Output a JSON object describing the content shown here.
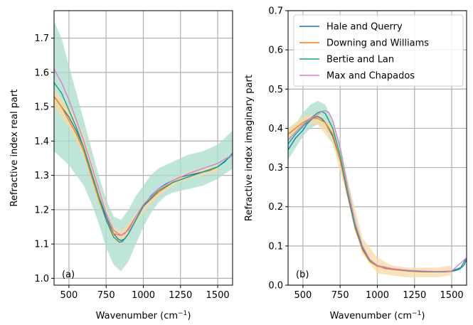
{
  "chart_data": [
    {
      "type": "line",
      "panel_label": "(a)",
      "xlabel": "Wavenumber (cm",
      "xlabel_sup": "−1",
      "xlabel_close": ")",
      "ylabel": "Refractive index real part",
      "xlim": [
        400,
        1600
      ],
      "ylim": [
        0.98,
        1.78
      ],
      "xticks": [
        500,
        750,
        1000,
        1250,
        1500
      ],
      "yticks": [
        1.0,
        1.1,
        1.2,
        1.3,
        1.4,
        1.5,
        1.6,
        1.7
      ],
      "ytick_labels": [
        "1.0",
        "1.1",
        "1.2",
        "1.3",
        "1.4",
        "1.5",
        "1.6",
        "1.7"
      ],
      "grid": true,
      "bands": [
        {
          "color": "#a9dccc",
          "x": [
            400,
            450,
            500,
            550,
            600,
            650,
            700,
            750,
            800,
            850,
            900,
            950,
            1000,
            1050,
            1100,
            1150,
            1200,
            1300,
            1400,
            1500,
            1600
          ],
          "upper": [
            1.75,
            1.7,
            1.62,
            1.54,
            1.46,
            1.38,
            1.3,
            1.23,
            1.18,
            1.17,
            1.2,
            1.24,
            1.27,
            1.3,
            1.32,
            1.33,
            1.34,
            1.36,
            1.37,
            1.39,
            1.43
          ],
          "lower": [
            1.37,
            1.35,
            1.33,
            1.3,
            1.27,
            1.22,
            1.16,
            1.09,
            1.04,
            1.02,
            1.05,
            1.1,
            1.15,
            1.19,
            1.22,
            1.24,
            1.25,
            1.26,
            1.27,
            1.29,
            1.32
          ]
        },
        {
          "color": "#f6d9a6",
          "x": [
            400,
            500,
            600,
            700,
            800,
            850,
            900,
            1000,
            1100,
            1200,
            1300,
            1400,
            1500
          ],
          "upper": [
            1.55,
            1.5,
            1.42,
            1.27,
            1.15,
            1.14,
            1.16,
            1.22,
            1.26,
            1.29,
            1.31,
            1.32,
            1.33
          ],
          "lower": [
            1.5,
            1.44,
            1.36,
            1.22,
            1.11,
            1.1,
            1.13,
            1.19,
            1.24,
            1.27,
            1.29,
            1.3,
            1.31
          ]
        }
      ],
      "series": [
        {
          "name": "Hale and Querry",
          "color": "#1f77b4",
          "x": [
            400,
            450,
            500,
            550,
            600,
            650,
            700,
            750,
            800,
            830,
            850,
            875,
            900,
            950,
            1000,
            1050,
            1100,
            1150,
            1200,
            1250,
            1300,
            1350,
            1400,
            1450,
            1500,
            1550,
            1600
          ],
          "y": [
            1.53,
            1.5,
            1.47,
            1.43,
            1.38,
            1.31,
            1.24,
            1.18,
            1.13,
            1.115,
            1.11,
            1.115,
            1.13,
            1.17,
            1.21,
            1.24,
            1.26,
            1.275,
            1.285,
            1.295,
            1.3,
            1.305,
            1.31,
            1.315,
            1.325,
            1.34,
            1.365
          ]
        },
        {
          "name": "Downing and Williams",
          "color": "#ff7f0e",
          "x": [
            400,
            450,
            500,
            550,
            600,
            650,
            700,
            750,
            800,
            850,
            875,
            900,
            950,
            1000,
            1100,
            1200,
            1300,
            1400,
            1480
          ],
          "y": [
            1.53,
            1.5,
            1.46,
            1.42,
            1.37,
            1.3,
            1.23,
            1.17,
            1.13,
            1.125,
            1.13,
            1.145,
            1.18,
            1.21,
            1.25,
            1.28,
            1.295,
            1.31,
            1.32
          ]
        },
        {
          "name": "Bertie and Lan",
          "color": "#17a085",
          "x": [
            400,
            450,
            500,
            550,
            600,
            650,
            700,
            750,
            800,
            840,
            860,
            900,
            950,
            1000,
            1100,
            1200,
            1300,
            1400,
            1500,
            1600
          ],
          "y": [
            1.57,
            1.54,
            1.49,
            1.44,
            1.38,
            1.31,
            1.24,
            1.17,
            1.12,
            1.105,
            1.107,
            1.13,
            1.17,
            1.21,
            1.255,
            1.28,
            1.295,
            1.31,
            1.325,
            1.36
          ]
        },
        {
          "name": "Max and Chapados",
          "color": "#d77fcf",
          "x": [
            400,
            450,
            500,
            550,
            600,
            650,
            700,
            750,
            800,
            850,
            900,
            950,
            1000,
            1100,
            1200,
            1300,
            1400,
            1500,
            1600
          ],
          "y": [
            1.61,
            1.57,
            1.52,
            1.46,
            1.4,
            1.33,
            1.26,
            1.19,
            1.14,
            1.125,
            1.14,
            1.18,
            1.215,
            1.26,
            1.285,
            1.305,
            1.32,
            1.335,
            1.36
          ]
        }
      ]
    },
    {
      "type": "line",
      "panel_label": "(b)",
      "xlabel": "Wavenumber (cm",
      "xlabel_sup": "−1",
      "xlabel_close": ")",
      "ylabel": "Refractive index imaginary part",
      "xlim": [
        400,
        1600
      ],
      "ylim": [
        0.0,
        0.7
      ],
      "xticks": [
        500,
        750,
        1000,
        1250,
        1500
      ],
      "yticks": [
        0.0,
        0.1,
        0.2,
        0.3,
        0.4,
        0.5,
        0.6,
        0.7
      ],
      "ytick_labels": [
        "0.0",
        "0.1",
        "0.2",
        "0.3",
        "0.4",
        "0.5",
        "0.6",
        "0.7"
      ],
      "grid": true,
      "legend_loc": "top-right",
      "bands": [
        {
          "color": "#a9dccc",
          "x": [
            400,
            450,
            500,
            550,
            600,
            650,
            700,
            750,
            800,
            850,
            900
          ],
          "upper": [
            0.4,
            0.41,
            0.44,
            0.46,
            0.47,
            0.46,
            0.42,
            0.36,
            0.27,
            0.18,
            0.11
          ],
          "lower": [
            0.32,
            0.35,
            0.38,
            0.4,
            0.41,
            0.4,
            0.36,
            0.31,
            0.23,
            0.15,
            0.09
          ]
        },
        {
          "color": "#f6d9a6",
          "x": [
            400,
            500,
            600,
            700,
            800,
            900,
            1000,
            1100,
            1200,
            1300,
            1400,
            1500
          ],
          "upper": [
            0.4,
            0.43,
            0.44,
            0.4,
            0.27,
            0.12,
            0.07,
            0.05,
            0.045,
            0.045,
            0.045,
            0.05
          ],
          "lower": [
            0.37,
            0.41,
            0.41,
            0.36,
            0.22,
            0.08,
            0.03,
            0.025,
            0.02,
            0.02,
            0.02,
            0.025
          ]
        }
      ],
      "series": [
        {
          "name": "Hale and Querry",
          "color": "#1f77b4",
          "x": [
            400,
            425,
            450,
            475,
            500,
            525,
            550,
            575,
            600,
            625,
            650,
            700,
            750,
            800,
            850,
            900,
            950,
            1000,
            1050,
            1100,
            1200,
            1300,
            1400,
            1450,
            1500,
            1550,
            1580,
            1600
          ],
          "y": [
            0.345,
            0.36,
            0.375,
            0.385,
            0.395,
            0.41,
            0.42,
            0.428,
            0.43,
            0.425,
            0.415,
            0.38,
            0.32,
            0.23,
            0.15,
            0.095,
            0.065,
            0.05,
            0.043,
            0.04,
            0.037,
            0.035,
            0.034,
            0.034,
            0.035,
            0.04,
            0.05,
            0.065
          ]
        },
        {
          "name": "Downing and Williams",
          "color": "#ff7f0e",
          "x": [
            400,
            450,
            500,
            550,
            600,
            650,
            700,
            750,
            800,
            850,
            900,
            950,
            1000,
            1100,
            1200,
            1300,
            1400,
            1500
          ],
          "y": [
            0.385,
            0.4,
            0.415,
            0.425,
            0.425,
            0.415,
            0.385,
            0.32,
            0.23,
            0.145,
            0.09,
            0.06,
            0.048,
            0.04,
            0.036,
            0.034,
            0.034,
            0.035
          ]
        },
        {
          "name": "Bertie and Lan",
          "color": "#17a085",
          "x": [
            400,
            450,
            500,
            550,
            600,
            625,
            650,
            700,
            750,
            800,
            850,
            900,
            950,
            1000,
            1100,
            1200,
            1300,
            1400,
            1500,
            1560,
            1600
          ],
          "y": [
            0.36,
            0.385,
            0.405,
            0.425,
            0.44,
            0.443,
            0.438,
            0.4,
            0.33,
            0.235,
            0.15,
            0.095,
            0.063,
            0.05,
            0.042,
            0.037,
            0.035,
            0.034,
            0.036,
            0.045,
            0.07
          ]
        },
        {
          "name": "Max and Chapados",
          "color": "#d77fcf",
          "x": [
            400,
            450,
            500,
            550,
            600,
            625,
            650,
            675,
            700,
            750,
            800,
            850,
            900,
            950,
            1000,
            1100,
            1200,
            1300,
            1400,
            1500,
            1600
          ],
          "y": [
            0.37,
            0.39,
            0.41,
            0.425,
            0.435,
            0.443,
            0.445,
            0.44,
            0.42,
            0.35,
            0.25,
            0.16,
            0.1,
            0.065,
            0.05,
            0.042,
            0.038,
            0.036,
            0.035,
            0.036,
            0.07
          ]
        }
      ]
    }
  ]
}
